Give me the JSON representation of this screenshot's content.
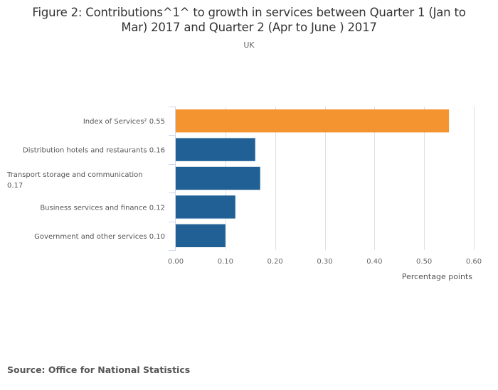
{
  "header": {
    "title_line1": "Figure 2: Contributions^1^ to growth in services between Quarter 1 (Jan to",
    "title_line2": "Mar) 2017 and Quarter 2 (Apr to June ) 2017",
    "subtitle": "UK"
  },
  "footer": {
    "source": "Source: Office for National Statistics"
  },
  "colors": {
    "highlight": "#f39431",
    "primary": "#206095",
    "grid": "#e0e0e0",
    "axis": "#ccd6eb"
  },
  "chart_data": {
    "type": "bar",
    "orientation": "horizontal",
    "title": "Figure 2: Contributions^1^ to growth in services between Quarter 1 (Jan to Mar) 2017 and Quarter 2 (Apr to June ) 2017",
    "subtitle": "UK",
    "categories": [
      "Index of Services² 0.55",
      "Distribution hotels and restaurants 0.16",
      "Transport storage and communication 0.17",
      "Business services and finance 0.12",
      "Government and other services 0.10"
    ],
    "category_label_lines": [
      [
        "Index of Services² 0.55"
      ],
      [
        "Distribution hotels and restaurants 0.16"
      ],
      [
        "Transport storage and communication",
        "0.17"
      ],
      [
        "Business services and finance 0.12"
      ],
      [
        "Government and other services 0.10"
      ]
    ],
    "values": [
      0.55,
      0.16,
      0.17,
      0.12,
      0.1
    ],
    "bar_colors": [
      "#f39431",
      "#206095",
      "#206095",
      "#206095",
      "#206095"
    ],
    "xlabel": "Percentage points",
    "ylabel": "",
    "xlim": [
      0,
      0.6
    ],
    "xticks": [
      0.0,
      0.1,
      0.2,
      0.3,
      0.4,
      0.5,
      0.6
    ],
    "xtick_labels": [
      "0.00",
      "0.10",
      "0.20",
      "0.30",
      "0.40",
      "0.50",
      "0.60"
    ],
    "grid": true,
    "legend": "none",
    "source": "Source: Office for National Statistics"
  }
}
